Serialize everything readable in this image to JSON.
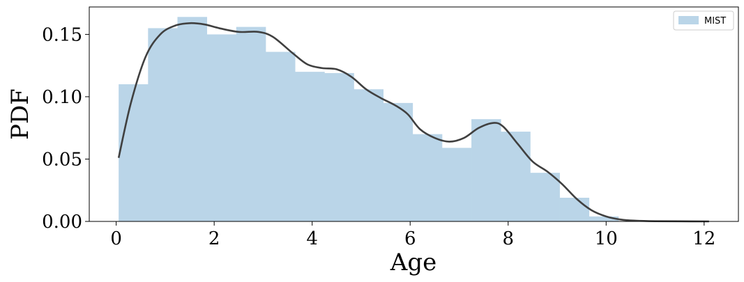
{
  "chart_data": {
    "type": "bar",
    "subtype": "histogram_with_kde",
    "xlabel": "Age",
    "ylabel": "PDF",
    "xlim": [
      -0.55,
      12.7
    ],
    "ylim": [
      0.0,
      0.172
    ],
    "x_ticks": [
      0,
      2,
      4,
      6,
      8,
      10,
      12
    ],
    "x_tick_labels": [
      "0",
      "2",
      "4",
      "6",
      "8",
      "10",
      "12"
    ],
    "y_ticks": [
      0.0,
      0.05,
      0.1,
      0.15
    ],
    "y_tick_labels": [
      "0.00",
      "0.05",
      "0.10",
      "0.15"
    ],
    "grid": false,
    "legend_position": "top-right",
    "histogram": {
      "name": "MIST",
      "color": "#bad5e8",
      "bin_edges": [
        0.05,
        0.65,
        1.25,
        1.85,
        2.45,
        3.05,
        3.65,
        4.25,
        4.85,
        5.45,
        6.05,
        6.65,
        7.25,
        7.85,
        8.45,
        9.05,
        9.65,
        10.25
      ],
      "values": [
        0.11,
        0.155,
        0.164,
        0.15,
        0.156,
        0.136,
        0.12,
        0.119,
        0.106,
        0.095,
        0.07,
        0.059,
        0.082,
        0.072,
        0.039,
        0.019,
        0.004
      ]
    },
    "kde": {
      "color": "#404040",
      "x": [
        0.05,
        0.3,
        0.6,
        0.9,
        1.2,
        1.5,
        1.8,
        2.1,
        2.5,
        2.9,
        3.2,
        3.6,
        3.9,
        4.2,
        4.5,
        4.8,
        5.1,
        5.4,
        5.7,
        5.95,
        6.2,
        6.5,
        6.8,
        7.1,
        7.4,
        7.7,
        7.9,
        8.2,
        8.5,
        8.8,
        9.1,
        9.4,
        9.7,
        10.0,
        10.3,
        10.6,
        11.0,
        11.5,
        12.1
      ],
      "y": [
        0.051,
        0.095,
        0.132,
        0.15,
        0.157,
        0.159,
        0.158,
        0.155,
        0.152,
        0.152,
        0.148,
        0.135,
        0.126,
        0.123,
        0.122,
        0.116,
        0.106,
        0.099,
        0.093,
        0.086,
        0.074,
        0.067,
        0.064,
        0.067,
        0.075,
        0.079,
        0.076,
        0.062,
        0.048,
        0.04,
        0.03,
        0.018,
        0.009,
        0.004,
        0.0015,
        0.0006,
        0.0002,
        0.0001,
        0.0
      ]
    }
  }
}
